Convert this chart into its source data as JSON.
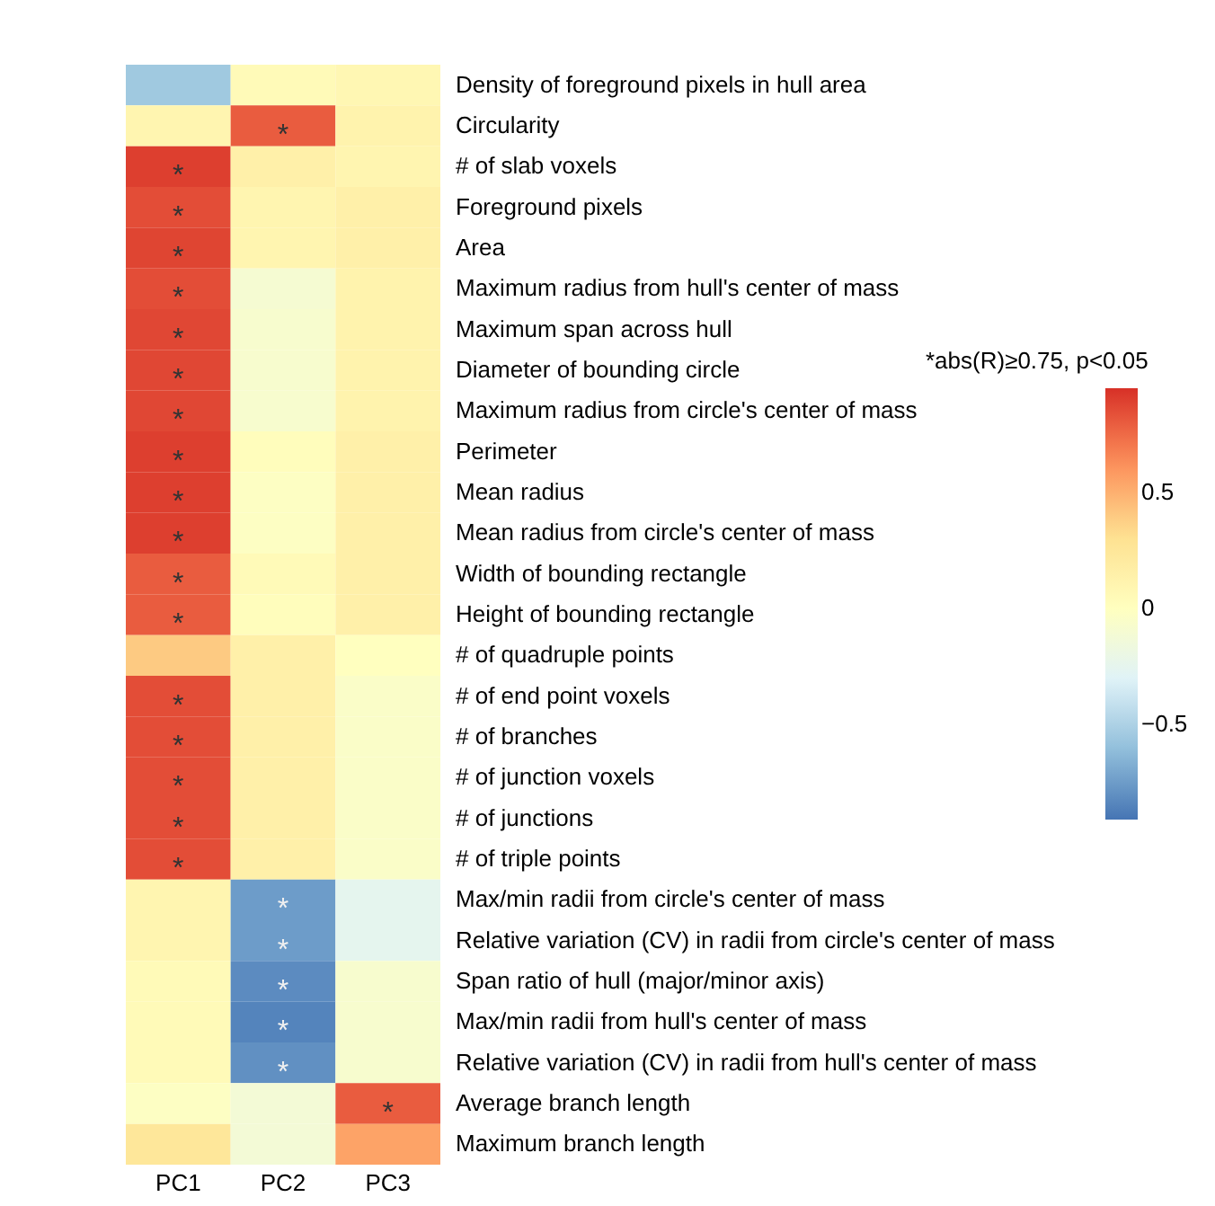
{
  "chart_data": {
    "type": "heatmap",
    "categories": [
      "PC1",
      "PC2",
      "PC3"
    ],
    "y_categories": [
      "Density of foreground pixels in hull area",
      "Circularity",
      "# of slab voxels",
      "Foreground pixels",
      "Area",
      "Maximum radius from hull's center of mass",
      "Maximum span across hull",
      "Diameter of bounding circle",
      "Maximum radius from circle's center of mass",
      "Perimeter",
      "Mean radius",
      "Mean radius from circle's center of mass",
      "Width of bounding rectangle",
      "Height of bounding rectangle",
      "# of quadruple points",
      "# of end point voxels",
      "# of branches",
      "# of junction voxels",
      "# of junctions",
      "# of triple points",
      "Max/min radii from circle's center of mass",
      "Relative variation (CV) in radii from circle's center of mass",
      "Span ratio of hull (major/minor axis)",
      "Max/min radii from hull's center of mass",
      "Relative variation (CV) in radii from hull's center of mass",
      "Average branch length",
      "Maximum branch length"
    ],
    "cells": [
      [
        -0.55,
        0.05,
        0.08
      ],
      [
        0.1,
        0.8,
        0.12
      ],
      [
        0.9,
        0.15,
        0.1
      ],
      [
        0.85,
        0.1,
        0.15
      ],
      [
        0.88,
        0.1,
        0.15
      ],
      [
        0.85,
        -0.1,
        0.12
      ],
      [
        0.87,
        -0.08,
        0.12
      ],
      [
        0.87,
        -0.08,
        0.12
      ],
      [
        0.87,
        -0.08,
        0.12
      ],
      [
        0.9,
        0.02,
        0.15
      ],
      [
        0.9,
        -0.02,
        0.15
      ],
      [
        0.9,
        -0.02,
        0.15
      ],
      [
        0.8,
        0.05,
        0.15
      ],
      [
        0.8,
        0.02,
        0.15
      ],
      [
        0.4,
        0.15,
        0.0
      ],
      [
        0.85,
        0.15,
        -0.05
      ],
      [
        0.85,
        0.15,
        -0.05
      ],
      [
        0.85,
        0.15,
        -0.05
      ],
      [
        0.85,
        0.15,
        -0.05
      ],
      [
        0.85,
        0.15,
        -0.05
      ],
      [
        0.1,
        -0.75,
        -0.25
      ],
      [
        0.1,
        -0.75,
        -0.25
      ],
      [
        0.05,
        -0.82,
        -0.08
      ],
      [
        0.05,
        -0.85,
        -0.08
      ],
      [
        0.05,
        -0.8,
        -0.08
      ],
      [
        -0.02,
        -0.12,
        0.8
      ],
      [
        0.25,
        -0.12,
        0.55
      ]
    ],
    "cell_labels": [
      [
        null,
        null,
        null
      ],
      [
        null,
        "*",
        null
      ],
      [
        "*",
        null,
        null
      ],
      [
        "*",
        null,
        null
      ],
      [
        "*",
        null,
        null
      ],
      [
        "*",
        null,
        null
      ],
      [
        "*",
        null,
        null
      ],
      [
        "*",
        null,
        null
      ],
      [
        "*",
        null,
        null
      ],
      [
        "*",
        null,
        null
      ],
      [
        "*",
        null,
        null
      ],
      [
        "*",
        null,
        null
      ],
      [
        "*",
        null,
        null
      ],
      [
        "*",
        null,
        null
      ],
      [
        null,
        null,
        null
      ],
      [
        "*",
        null,
        null
      ],
      [
        "*",
        null,
        null
      ],
      [
        "*",
        null,
        null
      ],
      [
        "*",
        null,
        null
      ],
      [
        "*",
        null,
        null
      ],
      [
        null,
        "*",
        null
      ],
      [
        null,
        "*",
        null
      ],
      [
        null,
        "*",
        null
      ],
      [
        null,
        "*",
        null
      ],
      [
        null,
        "*",
        null
      ],
      [
        null,
        null,
        "*"
      ],
      [
        null,
        null,
        null
      ]
    ],
    "clim": [
      -0.91,
      0.95
    ],
    "cticks": [
      {
        "value": 0.5,
        "label": "0.5"
      },
      {
        "value": 0,
        "label": "0"
      },
      {
        "value": -0.5,
        "label": "−0.5"
      }
    ],
    "annotations": [
      "*abs(R)≥0.75, p<0.05"
    ]
  }
}
